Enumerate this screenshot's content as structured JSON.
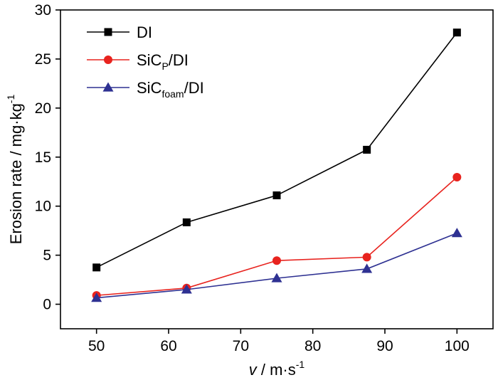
{
  "chart_data": {
    "type": "line",
    "xlabel": {
      "var": "v",
      "rest": " / m·s",
      "exp": "-1"
    },
    "ylabel": {
      "main": "Erosion rate / mg·kg",
      "exp": "-1"
    },
    "xlim": [
      45,
      105
    ],
    "ylim": [
      -2.5,
      30
    ],
    "xticks": [
      50,
      60,
      70,
      80,
      90,
      100
    ],
    "yticks": [
      0,
      5,
      10,
      15,
      20,
      25,
      30
    ],
    "x": [
      50,
      62.5,
      75,
      87.5,
      100
    ],
    "series": [
      {
        "name": "DI",
        "label_parts": {
          "base": "DI",
          "sub": "",
          "tail": ""
        },
        "marker": "square",
        "color": "#000000",
        "values": [
          3.75,
          8.35,
          11.1,
          15.75,
          27.7
        ]
      },
      {
        "name": "SiCP/DI",
        "label_parts": {
          "base": "SiC",
          "sub": "P",
          "tail": "/DI"
        },
        "marker": "circle",
        "color": "#e8231e",
        "values": [
          0.9,
          1.65,
          4.45,
          4.8,
          12.95
        ]
      },
      {
        "name": "SiCfoam/DI",
        "label_parts": {
          "base": "SiC",
          "sub": "foam",
          "tail": "/DI"
        },
        "marker": "triangle",
        "color": "#2e3192",
        "values": [
          0.65,
          1.5,
          2.65,
          3.6,
          7.25
        ]
      }
    ],
    "legend_position": "top-left",
    "grid": false
  }
}
